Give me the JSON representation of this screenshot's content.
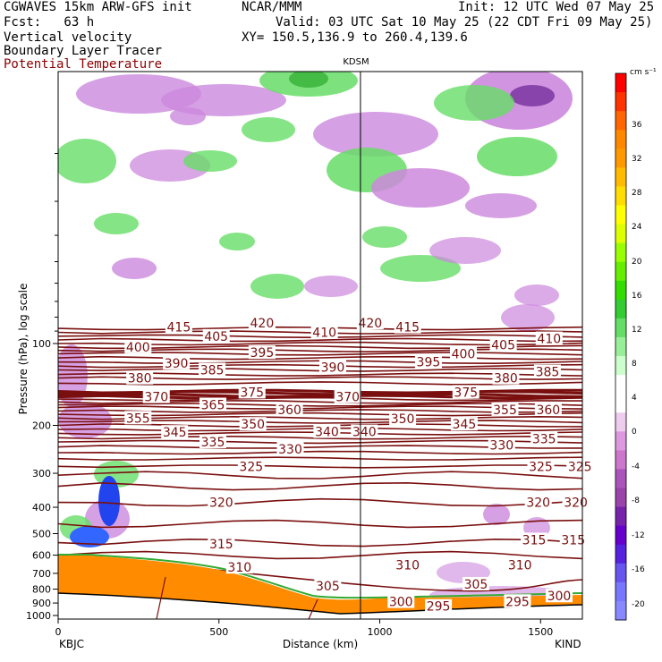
{
  "header": {
    "model": "CGWAVES 15km ARW-GFS init",
    "center": "NCAR/MMM",
    "init": "Init: 12 UTC Wed 07 May 25",
    "fcst": "Fcst:   63 h",
    "valid": "Valid: 03 UTC Sat 10 May 25 (22 CDT Fri 09 May 25)",
    "field1": "Vertical velocity",
    "field2": "Boundary Layer Tracer",
    "field3": "Potential Temperature",
    "xy": "XY= 150.5,136.9 to 260.4,139.6"
  },
  "colors": {
    "theta": "#7a0f0f",
    "field3_text": "#8b0000",
    "terrain": "#ff8c00",
    "upward": "#66dd66",
    "downward": "#cc88dd"
  },
  "chart_data": {
    "type": "cross-section",
    "station_marker": "KDSM",
    "station_marker_x_km": 940,
    "left_station": "KBJC",
    "right_station": "KIND",
    "xlabel": "Distance (km)",
    "ylabel": "Pressure (hPa), log scale",
    "x_ticks": [
      0,
      500,
      1000,
      1500
    ],
    "x_range": [
      0,
      1630
    ],
    "y_ticks": [
      100,
      200,
      300,
      400,
      500,
      600,
      700,
      800,
      900,
      1000
    ],
    "y_scale": "log",
    "colorbar": {
      "unit": "cm s⁻¹",
      "labels": [
        "36",
        "32",
        "28",
        "24",
        "20",
        "16",
        "12",
        "8",
        "4",
        "0",
        "-4",
        "-8",
        "-12",
        "-16",
        "-20"
      ],
      "colors": [
        "#ff0000",
        "#ff3300",
        "#ff6600",
        "#ff8800",
        "#ff9900",
        "#ffbb00",
        "#ffdd00",
        "#ffff00",
        "#ddff00",
        "#99ff00",
        "#66ee00",
        "#33dd00",
        "#33cc33",
        "#66dd66",
        "#99ee99",
        "#ccffcc",
        "#ffffff",
        "#ffffff",
        "#eeccee",
        "#dd99dd",
        "#cc77cc",
        "#aa55bb",
        "#9944aa",
        "#7722aa",
        "#6600cc",
        "#5522dd",
        "#6655ee",
        "#7777ff",
        "#8888ff"
      ]
    },
    "isentrope_labels": [
      {
        "text": "415",
        "x": 145,
        "p": 87
      },
      {
        "text": "420",
        "x": 245,
        "p": 84
      },
      {
        "text": "420",
        "x": 375,
        "p": 84
      },
      {
        "text": "415",
        "x": 420,
        "p": 87
      },
      {
        "text": "410",
        "x": 320,
        "p": 91
      },
      {
        "text": "410",
        "x": 590,
        "p": 96
      },
      {
        "text": "405",
        "x": 190,
        "p": 94
      },
      {
        "text": "405",
        "x": 535,
        "p": 101
      },
      {
        "text": "400",
        "x": 96,
        "p": 103
      },
      {
        "text": "400",
        "x": 487,
        "p": 109
      },
      {
        "text": "395",
        "x": 245,
        "p": 108
      },
      {
        "text": "395",
        "x": 445,
        "p": 117
      },
      {
        "text": "390",
        "x": 142,
        "p": 118
      },
      {
        "text": "390",
        "x": 330,
        "p": 122
      },
      {
        "text": "385",
        "x": 185,
        "p": 125
      },
      {
        "text": "385",
        "x": 588,
        "p": 127
      },
      {
        "text": "380",
        "x": 98,
        "p": 134
      },
      {
        "text": "380",
        "x": 538,
        "p": 134
      },
      {
        "text": "375",
        "x": 233,
        "p": 151
      },
      {
        "text": "375",
        "x": 490,
        "p": 151
      },
      {
        "text": "370",
        "x": 118,
        "p": 157
      },
      {
        "text": "370",
        "x": 348,
        "p": 157
      },
      {
        "text": "365",
        "x": 186,
        "p": 168
      },
      {
        "text": "360",
        "x": 278,
        "p": 175
      },
      {
        "text": "360",
        "x": 589,
        "p": 175
      },
      {
        "text": "355",
        "x": 96,
        "p": 188
      },
      {
        "text": "355",
        "x": 537,
        "p": 175
      },
      {
        "text": "350",
        "x": 234,
        "p": 198
      },
      {
        "text": "350",
        "x": 414,
        "p": 189
      },
      {
        "text": "345",
        "x": 140,
        "p": 212
      },
      {
        "text": "345",
        "x": 488,
        "p": 198
      },
      {
        "text": "340",
        "x": 323,
        "p": 211
      },
      {
        "text": "340",
        "x": 368,
        "p": 211
      },
      {
        "text": "335",
        "x": 186,
        "p": 230
      },
      {
        "text": "335",
        "x": 584,
        "p": 224
      },
      {
        "text": "330",
        "x": 279,
        "p": 244
      },
      {
        "text": "330",
        "x": 533,
        "p": 236
      },
      {
        "text": "325",
        "x": 232,
        "p": 283
      },
      {
        "text": "325",
        "x": 580,
        "p": 283
      },
      {
        "text": "325",
        "x": 627,
        "p": 283
      },
      {
        "text": "320",
        "x": 196,
        "p": 384
      },
      {
        "text": "320",
        "x": 577,
        "p": 384
      },
      {
        "text": "320",
        "x": 622,
        "p": 384
      },
      {
        "text": "315",
        "x": 196,
        "p": 546
      },
      {
        "text": "315",
        "x": 572,
        "p": 527
      },
      {
        "text": "315",
        "x": 619,
        "p": 527
      },
      {
        "text": "310",
        "x": 218,
        "p": 665
      },
      {
        "text": "310",
        "x": 420,
        "p": 653
      },
      {
        "text": "310",
        "x": 555,
        "p": 653
      },
      {
        "text": "305",
        "x": 324,
        "p": 780
      },
      {
        "text": "305",
        "x": 502,
        "p": 767
      },
      {
        "text": "300",
        "x": 412,
        "p": 890
      },
      {
        "text": "300",
        "x": 602,
        "p": 848
      },
      {
        "text": "295",
        "x": 457,
        "p": 925
      },
      {
        "text": "295",
        "x": 552,
        "p": 888
      }
    ]
  }
}
